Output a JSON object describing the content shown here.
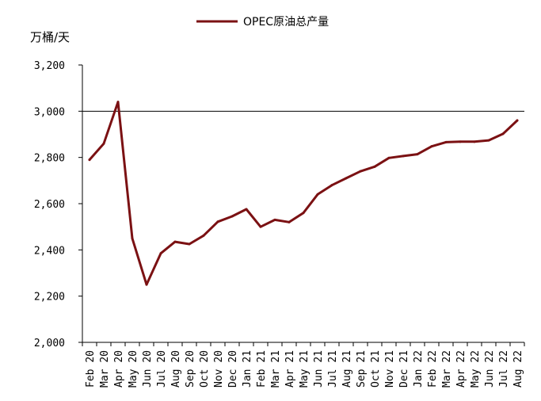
{
  "chart_data": {
    "type": "line",
    "ylabel": "万桶/天",
    "ylim": [
      2000,
      3200
    ],
    "yticks": [
      2000,
      2200,
      2400,
      2600,
      2800,
      3000,
      3200
    ],
    "ytick_labels": [
      "2,000",
      "2,200",
      "2,400",
      "2,600",
      "2,800",
      "3,000",
      "3,200"
    ],
    "reference_line": 3000,
    "grid": false,
    "legend_position": "top-center",
    "categories": [
      "Feb 20",
      "Mar 20",
      "Apr 20",
      "May 20",
      "Jun 20",
      "Jul 20",
      "Aug 20",
      "Sep 20",
      "Oct 20",
      "Nov 20",
      "Dec 20",
      "Jan 21",
      "Feb 21",
      "Mar 21",
      "Apr 21",
      "May 21",
      "Jun 21",
      "Jul 21",
      "Aug 21",
      "Sep 21",
      "Oct 21",
      "Nov 21",
      "Dec 21",
      "Jan 22",
      "Feb 22",
      "Mar 22",
      "Apr 22",
      "May 22",
      "Jun 22",
      "Jul 22",
      "Aug 22"
    ],
    "series": [
      {
        "name": "OPEC原油总产量",
        "color": "#7b1113",
        "values": [
          2790,
          2860,
          3040,
          2450,
          2250,
          2385,
          2435,
          2425,
          2462,
          2522,
          2545,
          2576,
          2500,
          2530,
          2520,
          2560,
          2640,
          2680,
          2710,
          2740,
          2760,
          2798,
          2806,
          2814,
          2848,
          2866,
          2868,
          2868,
          2874,
          2902,
          2960
        ]
      }
    ]
  }
}
